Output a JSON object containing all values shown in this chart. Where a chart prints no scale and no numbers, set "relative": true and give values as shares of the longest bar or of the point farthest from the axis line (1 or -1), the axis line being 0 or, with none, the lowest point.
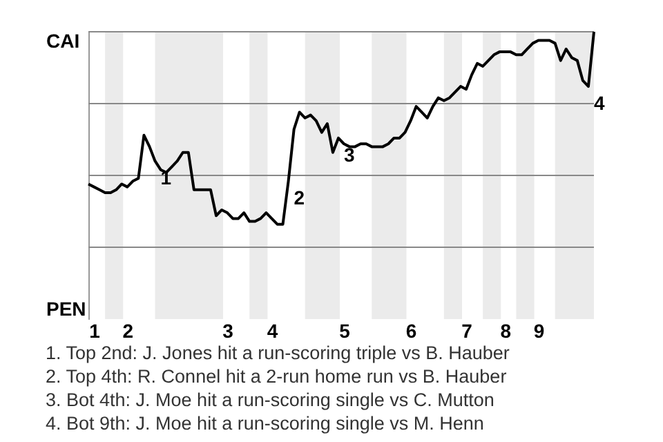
{
  "chart_data": {
    "type": "line",
    "relative": true,
    "categories": [
      null,
      "1",
      null,
      null,
      null,
      null,
      null,
      "2",
      null,
      null,
      null,
      null,
      null,
      null,
      null,
      null,
      null,
      null,
      null,
      null,
      null,
      null,
      null,
      null,
      null,
      "3",
      null,
      null,
      null,
      null,
      null,
      null,
      null,
      "4",
      null,
      null,
      null,
      null,
      null,
      null,
      null,
      null,
      null,
      null,
      null,
      null,
      "5",
      null,
      null,
      null,
      null,
      null,
      null,
      null,
      null,
      null,
      null,
      null,
      "6",
      null,
      null,
      null,
      null,
      null,
      null,
      null,
      null,
      null,
      "7",
      null,
      null,
      null,
      null,
      null,
      null,
      "8",
      null,
      null,
      null,
      null,
      null,
      "9",
      null,
      null,
      null,
      null,
      null,
      null,
      null,
      null,
      null,
      null
    ],
    "series": [
      {
        "color": "#000000",
        "values": [
          0.47,
          0.46,
          0.45,
          0.44,
          0.44,
          0.45,
          0.47,
          0.46,
          0.48,
          0.49,
          0.64,
          0.6,
          0.55,
          0.52,
          0.51,
          0.53,
          0.55,
          0.58,
          0.58,
          0.45,
          0.45,
          0.45,
          0.45,
          0.36,
          0.38,
          0.37,
          0.35,
          0.35,
          0.37,
          0.34,
          0.34,
          0.35,
          0.37,
          0.35,
          0.33,
          0.33,
          0.48,
          0.66,
          0.72,
          0.7,
          0.71,
          0.69,
          0.65,
          0.68,
          0.58,
          0.63,
          0.61,
          0.6,
          0.6,
          0.61,
          0.61,
          0.6,
          0.6,
          0.6,
          0.61,
          0.63,
          0.63,
          0.65,
          0.69,
          0.74,
          0.72,
          0.7,
          0.74,
          0.77,
          0.76,
          0.77,
          0.79,
          0.81,
          0.8,
          0.85,
          0.89,
          0.88,
          0.9,
          0.92,
          0.93,
          0.93,
          0.93,
          0.92,
          0.92,
          0.94,
          0.96,
          0.97,
          0.97,
          0.97,
          0.96,
          0.9,
          0.94,
          0.91,
          0.9,
          0.83,
          0.81,
          1.0
        ]
      }
    ],
    "grid": "y",
    "annotations": [
      "CAI",
      "PEN",
      "1",
      "2",
      "3",
      "4",
      "1. Top 2nd: J. Jones hit a run-scoring triple vs B. Hauber",
      "2. Top 4th: R. Connel hit a 2-run home run vs B. Hauber",
      "3. Bot 4th: J. Moe hit a run-scoring single vs C. Mutton",
      "4. Bot 9th: J. Moe hit a run-scoring single vs M. Henn"
    ]
  }
}
